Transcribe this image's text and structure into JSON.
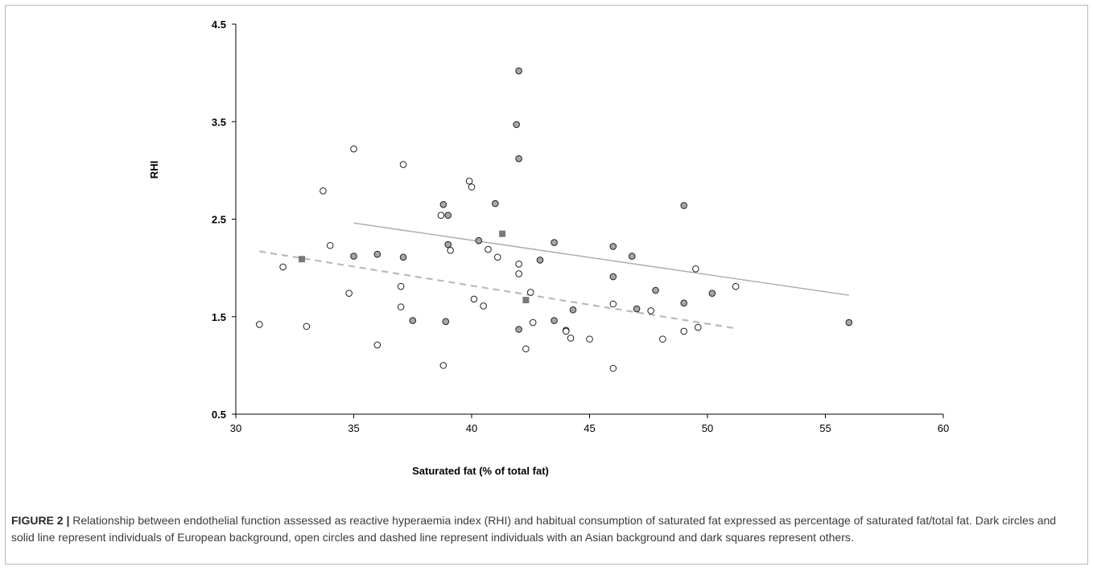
{
  "caption": {
    "label": "FIGURE 2 |",
    "text": "Relationship between endothelial function assessed as reactive hyperaemia index (RHI) and habitual consumption of saturated fat expressed as percentage of saturated fat/total fat. Dark circles and solid line represent individuals of European background, open circles and dashed line represent individuals with an Asian background and dark squares represent others."
  },
  "chart_data": {
    "type": "scatter",
    "title": "",
    "xlabel": "Saturated fat (% of total fat)",
    "ylabel": "RHI",
    "xlim": [
      30,
      60
    ],
    "ylim": [
      0.5,
      4.5
    ],
    "xticks": [
      30,
      35,
      40,
      45,
      50,
      55,
      60
    ],
    "yticks": [
      0.5,
      1.5,
      2.5,
      3.5,
      4.5
    ],
    "ytick_labels": [
      "0.5",
      "1.5",
      "2.5",
      "3.5",
      "4.5"
    ],
    "grid": false,
    "legend": "none",
    "series": [
      {
        "marker": "filled-circle",
        "color": "#a6a6a6",
        "points": [
          [
            42,
            4.02
          ],
          [
            41.9,
            3.47
          ],
          [
            42,
            3.12
          ],
          [
            38.8,
            2.65
          ],
          [
            39,
            2.54
          ],
          [
            41,
            2.66
          ],
          [
            40.3,
            2.28
          ],
          [
            39,
            2.24
          ],
          [
            35,
            2.12
          ],
          [
            36,
            2.14
          ],
          [
            37.1,
            2.11
          ],
          [
            43.5,
            2.26
          ],
          [
            46,
            2.22
          ],
          [
            46.8,
            2.12
          ],
          [
            42.9,
            2.08
          ],
          [
            46,
            1.91
          ],
          [
            47.8,
            1.77
          ],
          [
            49,
            2.64
          ],
          [
            50.2,
            1.74
          ],
          [
            49,
            1.64
          ],
          [
            47,
            1.58
          ],
          [
            37.5,
            1.46
          ],
          [
            38.9,
            1.45
          ],
          [
            43.5,
            1.46
          ],
          [
            44.3,
            1.57
          ],
          [
            44,
            1.36
          ],
          [
            42,
            1.37
          ],
          [
            56,
            1.44
          ]
        ]
      },
      {
        "marker": "open-circle",
        "color": "#ffffff",
        "points": [
          [
            31,
            1.42
          ],
          [
            32,
            2.01
          ],
          [
            33,
            1.4
          ],
          [
            33.7,
            2.79
          ],
          [
            34,
            2.23
          ],
          [
            34.8,
            1.74
          ],
          [
            35,
            3.22
          ],
          [
            36,
            1.21
          ],
          [
            37,
            1.81
          ],
          [
            37,
            1.6
          ],
          [
            37.1,
            3.06
          ],
          [
            38.7,
            2.54
          ],
          [
            39.1,
            2.18
          ],
          [
            38.8,
            1.0
          ],
          [
            39.9,
            2.89
          ],
          [
            40,
            2.83
          ],
          [
            40.1,
            1.68
          ],
          [
            40.5,
            1.61
          ],
          [
            40.7,
            2.19
          ],
          [
            41.1,
            2.11
          ],
          [
            42,
            2.04
          ],
          [
            42,
            1.94
          ],
          [
            42.5,
            1.75
          ],
          [
            42.6,
            1.44
          ],
          [
            42.3,
            1.17
          ],
          [
            44,
            1.35
          ],
          [
            44.2,
            1.28
          ],
          [
            45,
            1.27
          ],
          [
            46,
            1.63
          ],
          [
            46,
            0.97
          ],
          [
            47.6,
            1.56
          ],
          [
            48.1,
            1.27
          ],
          [
            49,
            1.35
          ],
          [
            49.5,
            1.99
          ],
          [
            49.6,
            1.39
          ],
          [
            51.2,
            1.81
          ]
        ]
      },
      {
        "marker": "filled-square",
        "color": "#7a7a7a",
        "points": [
          [
            32.8,
            2.09
          ],
          [
            41.3,
            2.35
          ],
          [
            42.3,
            1.67
          ]
        ]
      }
    ],
    "lines": [
      {
        "style": "solid",
        "color": "#aaaaaa",
        "from": [
          35,
          2.46
        ],
        "to": [
          56,
          1.72
        ]
      },
      {
        "style": "dashed",
        "color": "#bbbbbb",
        "from": [
          31,
          2.17
        ],
        "to": [
          51.2,
          1.38
        ]
      }
    ]
  }
}
